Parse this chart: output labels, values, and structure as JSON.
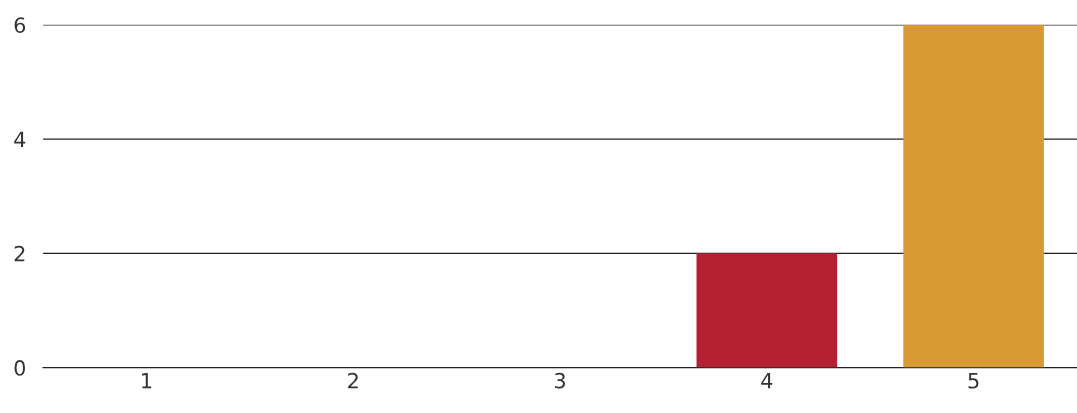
{
  "chart_data": {
    "type": "bar",
    "categories": [
      "1",
      "2",
      "3",
      "4",
      "5"
    ],
    "values": [
      0,
      0,
      0,
      2,
      6
    ],
    "colors": [
      "#b52033",
      "#b52033",
      "#b52033",
      "#b52033",
      "#d99a36"
    ],
    "ylim": [
      0,
      6
    ],
    "yticks": [
      0,
      2,
      4,
      6
    ],
    "grid": "y"
  }
}
